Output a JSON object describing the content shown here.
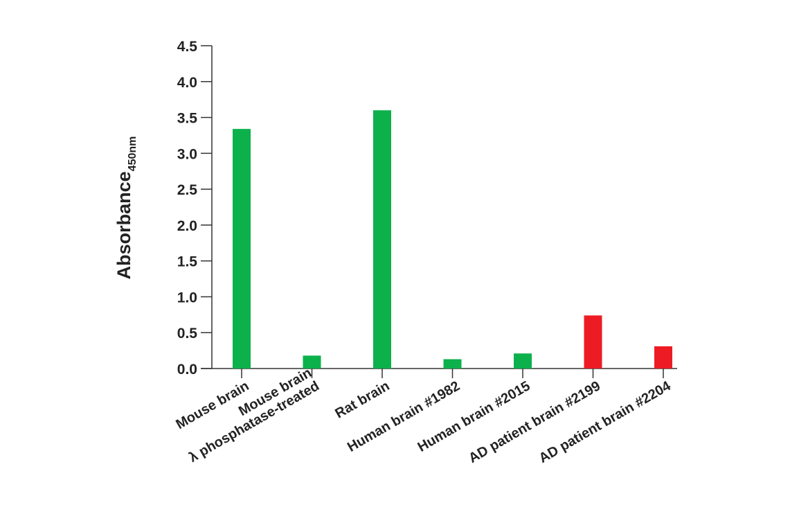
{
  "chart_data": {
    "type": "bar",
    "ylabel": "Absorbance",
    "ylabel_subscript": "450nm",
    "xlabel": "",
    "ylim": [
      0,
      4.5
    ],
    "yticks": [
      0.0,
      0.5,
      1.0,
      1.5,
      2.0,
      2.5,
      3.0,
      3.5,
      4.0,
      4.5
    ],
    "ytick_labels": [
      "0.0",
      "0.5",
      "1.0",
      "1.5",
      "2.0",
      "2.5",
      "3.0",
      "3.5",
      "4.0",
      "4.5"
    ],
    "grid": false,
    "legend": "none",
    "categories": [
      {
        "lines": [
          "Mouse brain"
        ]
      },
      {
        "lines": [
          "Mouse brain",
          "λ phosphatase-treated"
        ]
      },
      {
        "lines": [
          "Rat brain"
        ]
      },
      {
        "lines": [
          "Human brain #1982"
        ]
      },
      {
        "lines": [
          "Human brain #2015"
        ]
      },
      {
        "lines": [
          "AD patient brain #2199"
        ]
      },
      {
        "lines": [
          "AD patient brain #2204"
        ]
      }
    ],
    "values": [
      3.34,
      0.18,
      3.6,
      0.13,
      0.21,
      0.74,
      0.31
    ],
    "bar_colors": [
      "#0cb14b",
      "#0cb14b",
      "#0cb14b",
      "#0cb14b",
      "#0cb14b",
      "#ed1c24",
      "#ed1c24"
    ],
    "axis_color": "#333333"
  }
}
